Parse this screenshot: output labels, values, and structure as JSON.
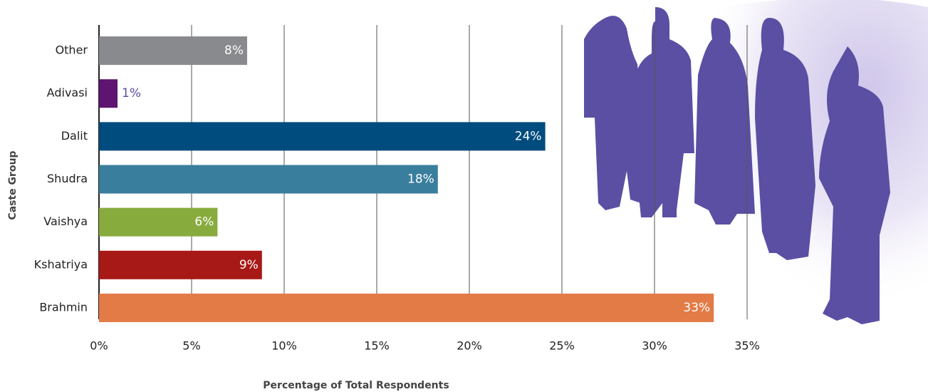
{
  "chart_data": {
    "type": "bar",
    "orientation": "horizontal",
    "categories": [
      "Other",
      "Adivasi",
      "Dalit",
      "Shudra",
      "Vaishya",
      "Kshatriya",
      "Brahmin"
    ],
    "values": [
      8.0,
      1.0,
      24.1,
      18.3,
      6.4,
      8.8,
      33.2
    ],
    "value_labels": [
      "8%",
      "1%",
      "24%",
      "18%",
      "6%",
      "9%",
      "33%"
    ],
    "colors": [
      "#898a8d",
      "#5e1470",
      "#004c7e",
      "#3a7e9e",
      "#88ab3e",
      "#a71916",
      "#e37b47"
    ],
    "xlim": [
      0,
      35
    ],
    "xticks": [
      {
        "value": 0,
        "label": "0%"
      },
      {
        "value": 5,
        "label": "5%"
      },
      {
        "value": 10,
        "label": "10%"
      },
      {
        "value": 15,
        "label": "15%"
      },
      {
        "value": 20,
        "label": "20%"
      },
      {
        "value": 25,
        "label": "25%"
      },
      {
        "value": 30,
        "label": "30%"
      },
      {
        "value": 35,
        "label": "35%"
      }
    ],
    "grid": true,
    "xlabel": "Percentage of Total Respondents",
    "ylabel": "Caste Group"
  }
}
